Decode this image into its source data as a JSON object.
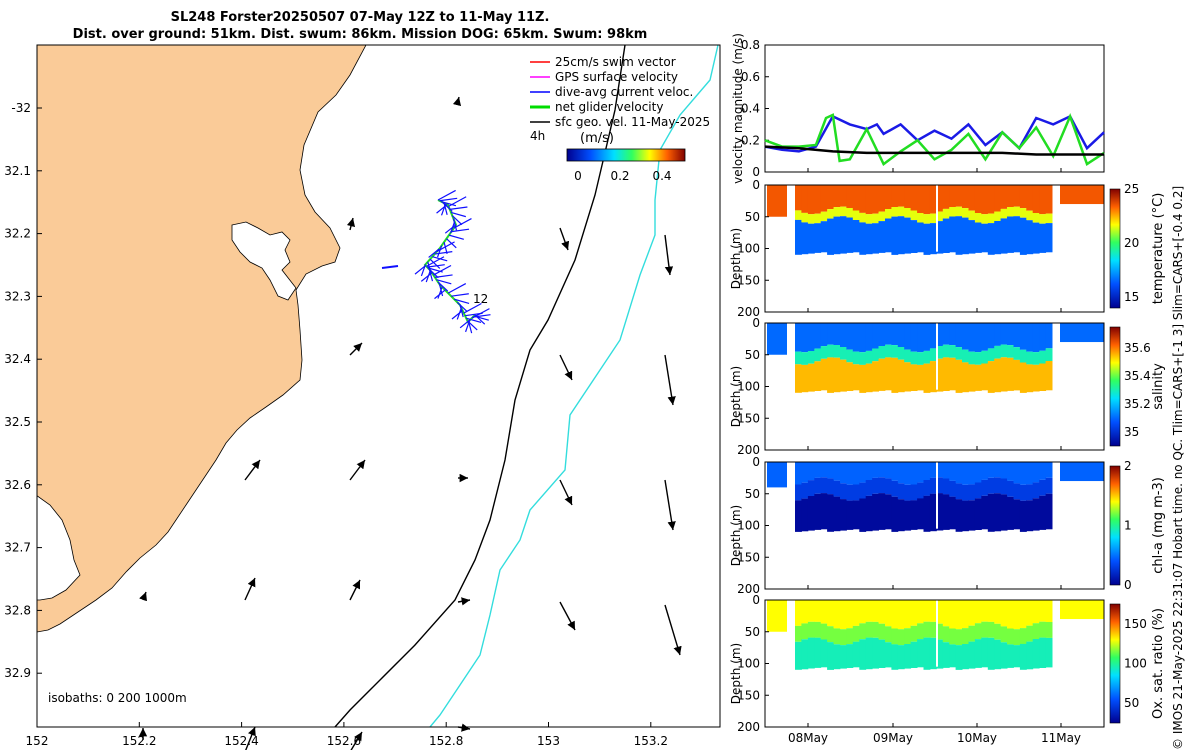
{
  "header": {
    "title_line1": "SL248 Forster20250507 07-May 12Z to 11-May 11Z.",
    "title_line2": "Dist. over ground: 51km. Dist. swum: 86km. Mission DOG: 65km. Swum: 98km"
  },
  "map": {
    "x_ticks": [
      "152",
      "152.2",
      "152.4",
      "152.6",
      "152.8",
      "153",
      "153.2"
    ],
    "y_ticks": [
      "-32",
      "32.1",
      "32.2",
      "32.3",
      "32.4",
      "32.5",
      "32.6",
      "32.7",
      "32.8",
      "32.9"
    ],
    "legend": [
      {
        "label": "25cm/s swim vector",
        "color": "#ff0000"
      },
      {
        "label": "GPS surface velocity",
        "color": "#ff00ff"
      },
      {
        "label": "dive-avg current veloc.",
        "color": "#0000ff"
      },
      {
        "label": "net glider velocity",
        "color": "#00dd00"
      },
      {
        "label": "sfc geo. vel. 11-May-2025",
        "color": "#000000"
      }
    ],
    "legend_4h": "4h",
    "colorbar_label": "(m/s)",
    "colorbar_ticks": [
      "0",
      "0.2",
      "0.4"
    ],
    "isobaths_label": "isobaths: 0   200  1000m",
    "track_label": "12",
    "colors": {
      "land": "#facb98",
      "isobath200": "#000000",
      "isobath1000": "#33dddd"
    }
  },
  "chart_data": [
    {
      "type": "line",
      "title": "",
      "ylabel": "velocity magnitude (m/s)",
      "ylim": [
        0,
        0.8
      ],
      "yticks": [
        "0",
        "0.2",
        "0.4",
        "0.6",
        "0.8"
      ],
      "series": [
        {
          "name": "dive-avg current veloc.",
          "color": "#1a1ae6",
          "x": [
            0,
            0.05,
            0.1,
            0.15,
            0.2,
            0.25,
            0.3,
            0.33,
            0.35,
            0.4,
            0.45,
            0.5,
            0.55,
            0.6,
            0.65,
            0.7,
            0.75,
            0.8,
            0.85,
            0.9,
            0.95,
            1
          ],
          "values": [
            0.16,
            0.14,
            0.13,
            0.16,
            0.35,
            0.3,
            0.27,
            0.3,
            0.24,
            0.3,
            0.2,
            0.26,
            0.21,
            0.3,
            0.17,
            0.25,
            0.15,
            0.34,
            0.3,
            0.35,
            0.15,
            0.25
          ]
        },
        {
          "name": "net glider velocity",
          "color": "#22dd22",
          "x": [
            0,
            0.05,
            0.1,
            0.15,
            0.18,
            0.2,
            0.22,
            0.25,
            0.3,
            0.35,
            0.4,
            0.45,
            0.5,
            0.55,
            0.6,
            0.65,
            0.7,
            0.75,
            0.8,
            0.85,
            0.9,
            0.95,
            1
          ],
          "values": [
            0.2,
            0.16,
            0.16,
            0.17,
            0.34,
            0.36,
            0.07,
            0.08,
            0.27,
            0.05,
            0.13,
            0.2,
            0.08,
            0.14,
            0.24,
            0.08,
            0.25,
            0.15,
            0.28,
            0.1,
            0.35,
            0.05,
            0.12
          ]
        },
        {
          "name": "sfc geo. vel.",
          "color": "#000000",
          "x": [
            0,
            0.1,
            0.2,
            0.3,
            0.4,
            0.5,
            0.6,
            0.7,
            0.8,
            0.9,
            1
          ],
          "values": [
            0.16,
            0.15,
            0.13,
            0.12,
            0.12,
            0.12,
            0.12,
            0.12,
            0.11,
            0.11,
            0.11
          ]
        }
      ]
    },
    {
      "type": "heatmap",
      "ylabel": "Depth (m)",
      "colorbar_label": "temperature (°C)",
      "ylim": [
        200,
        0
      ],
      "yticks": [
        "0",
        "50",
        "100",
        "150",
        "200"
      ],
      "cbar_ticks": [
        "15",
        "20",
        "25"
      ],
      "cbar_range": [
        14,
        25
      ],
      "surface_value": 23.5,
      "mid_value": 21.5,
      "deep_value": 16.5,
      "bottom_depth": 110,
      "thermocline": [
        40,
        55
      ]
    },
    {
      "type": "heatmap",
      "ylabel": "Depth (m)",
      "colorbar_label": "salinity",
      "ylim": [
        200,
        0
      ],
      "yticks": [
        "0",
        "50",
        "100",
        "150",
        "200"
      ],
      "cbar_ticks": [
        "35",
        "35.2",
        "35.4",
        "35.6"
      ],
      "cbar_range": [
        34.9,
        35.75
      ],
      "surface_value": 35.1,
      "mid_value": 35.3,
      "deep_value": 35.55,
      "bottom_depth": 110,
      "thermocline": [
        40,
        60
      ]
    },
    {
      "type": "heatmap",
      "ylabel": "Depth (m)",
      "colorbar_label": "chl-a (mg m-3)",
      "ylim": [
        200,
        0
      ],
      "yticks": [
        "0",
        "50",
        "100",
        "150",
        "200"
      ],
      "cbar_ticks": [
        "0",
        "1",
        "2"
      ],
      "cbar_range": [
        0,
        2
      ],
      "surface_value": 0.45,
      "mid_value": 0.3,
      "deep_value": 0.05,
      "bottom_depth": 110,
      "thermocline": [
        30,
        55
      ]
    },
    {
      "type": "heatmap",
      "ylabel": "Depth (m)",
      "colorbar_label": "Ox. sat. ratio (%)",
      "ylim": [
        200,
        0
      ],
      "yticks": [
        "0",
        "50",
        "100",
        "150",
        "200"
      ],
      "cbar_ticks": [
        "50",
        "100",
        "150"
      ],
      "cbar_range": [
        25,
        175
      ],
      "surface_value": 130,
      "mid_value": 115,
      "deep_value": 95,
      "bottom_depth": 110,
      "thermocline": [
        40,
        65
      ]
    }
  ],
  "time_axis": {
    "labels": [
      "08May",
      "09May",
      "10May",
      "11May"
    ]
  },
  "side_caption": "© IMOS 21-May-2025 22:31:07 Hobart time. no QC. Tlim=CARS+[-1 3] Slim=CARS+[-0.4 0.2]"
}
